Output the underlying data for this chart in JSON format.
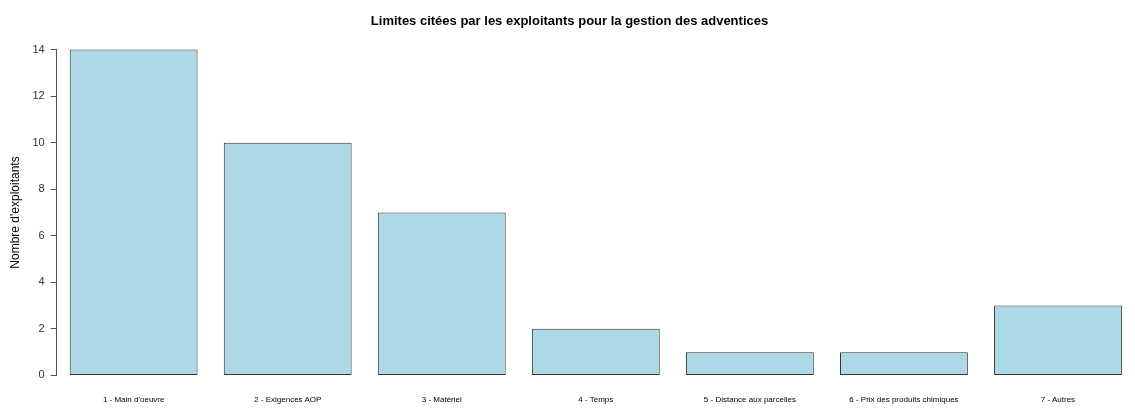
{
  "chart_data": {
    "type": "bar",
    "title": "Limites citées par les exploitants pour la gestion des adventices",
    "ylabel": "Nombre d'exploitants",
    "categories": [
      "1 - Main d'oeuvre",
      "2 - Exigences AOP",
      "3 - Matériel",
      "4 - Temps",
      "5 - Distance aux parcelles",
      "6 - Prix des produits chimiques",
      "7 - Autres"
    ],
    "values": [
      14,
      10,
      7,
      2,
      1,
      1,
      3
    ],
    "color": "#add8e6",
    "ylim": [
      0,
      14
    ],
    "yticks": [
      0,
      2,
      4,
      6,
      8,
      10,
      12,
      14
    ],
    "grid": false,
    "legend": false
  }
}
